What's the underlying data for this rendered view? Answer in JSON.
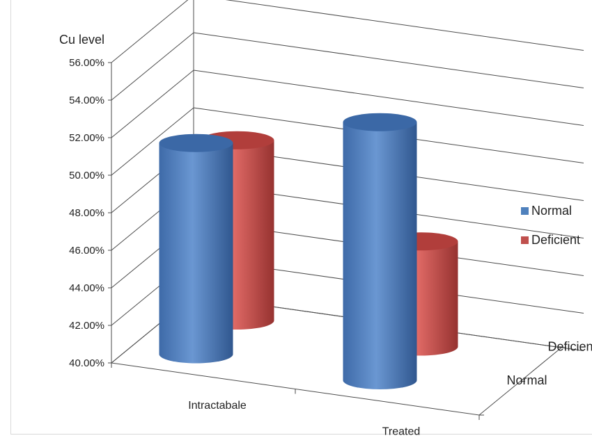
{
  "chart_data": {
    "type": "bar",
    "style": "3d-cylinder",
    "title": "Cu level",
    "categories": [
      "Intractabale",
      "Treated"
    ],
    "depth_categories": [
      "Normal",
      "Deficient"
    ],
    "series": [
      {
        "name": "Normal",
        "color": "#4f81bd",
        "values": [
          0.5125,
          0.5375
        ]
      },
      {
        "name": "Deficient",
        "color": "#c0504d",
        "values": [
          0.496,
          0.456
        ]
      }
    ],
    "y_ticks": [
      "40.00%",
      "42.00%",
      "44.00%",
      "46.00%",
      "48.00%",
      "50.00%",
      "52.00%",
      "54.00%",
      "56.00%"
    ],
    "ylim": [
      0.4,
      0.56
    ],
    "grid": true,
    "legend_position": "right"
  }
}
